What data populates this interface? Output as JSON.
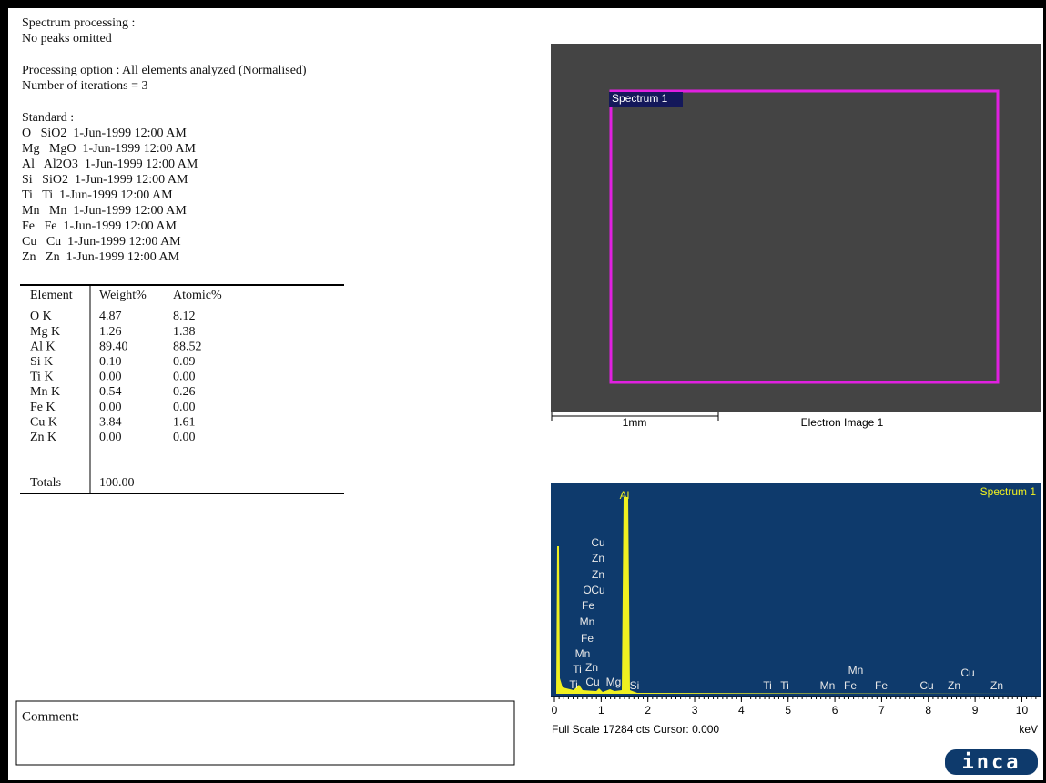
{
  "header": {
    "spectrum_processing": "Spectrum processing :",
    "peaks": "No peaks omitted",
    "option": "Processing option : All elements analyzed (Normalised)",
    "iterations": "Number of iterations = 3"
  },
  "standards": {
    "title": "Standard :",
    "rows": [
      "O   SiO2  1-Jun-1999 12:00 AM",
      "Mg   MgO  1-Jun-1999 12:00 AM",
      "Al   Al2O3  1-Jun-1999 12:00 AM",
      "Si   SiO2  1-Jun-1999 12:00 AM",
      "Ti   Ti  1-Jun-1999 12:00 AM",
      "Mn   Mn  1-Jun-1999 12:00 AM",
      "Fe   Fe  1-Jun-1999 12:00 AM",
      "Cu   Cu  1-Jun-1999 12:00 AM",
      "Zn   Zn  1-Jun-1999 12:00 AM"
    ]
  },
  "table": {
    "columns": [
      "Element",
      "Weight%",
      "Atomic%"
    ],
    "rows": [
      [
        "O K",
        "4.87",
        "8.12"
      ],
      [
        "Mg K",
        "1.26",
        "1.38"
      ],
      [
        "Al K",
        "89.40",
        "88.52"
      ],
      [
        "Si K",
        "0.10",
        "0.09"
      ],
      [
        "Ti K",
        "0.00",
        "0.00"
      ],
      [
        "Mn K",
        "0.54",
        "0.26"
      ],
      [
        "Fe K",
        "0.00",
        "0.00"
      ],
      [
        "Cu K",
        "3.84",
        "1.61"
      ],
      [
        "Zn K",
        "0.00",
        "0.00"
      ]
    ],
    "totals": [
      "Totals",
      "100.00"
    ]
  },
  "image": {
    "label": "Spectrum 1",
    "scale": "1mm",
    "caption": "Electron Image 1"
  },
  "spectrum": {
    "title": "Spectrum 1",
    "peak_labels": [
      "Al",
      "Cu",
      "Zn",
      "Zn",
      "O",
      "Cu",
      "Fe",
      "Mn",
      "Fe",
      "Mn",
      "Ti",
      "Zn",
      "Ti",
      "Cu",
      "Mg",
      "Si",
      "Ti",
      "Ti",
      "Mn",
      "Fe",
      "Fe",
      "Mn",
      "Cu",
      "Zn",
      "Cu",
      "Zn"
    ],
    "xlim": [
      0,
      10.4
    ],
    "xticks": [
      0,
      1,
      2,
      3,
      4,
      5,
      6,
      7,
      8,
      9,
      10
    ],
    "unit": "keV",
    "footer": "Full Scale 17284 cts Cursor: 0.000"
  },
  "comment": "Comment:",
  "logo": "inca"
}
